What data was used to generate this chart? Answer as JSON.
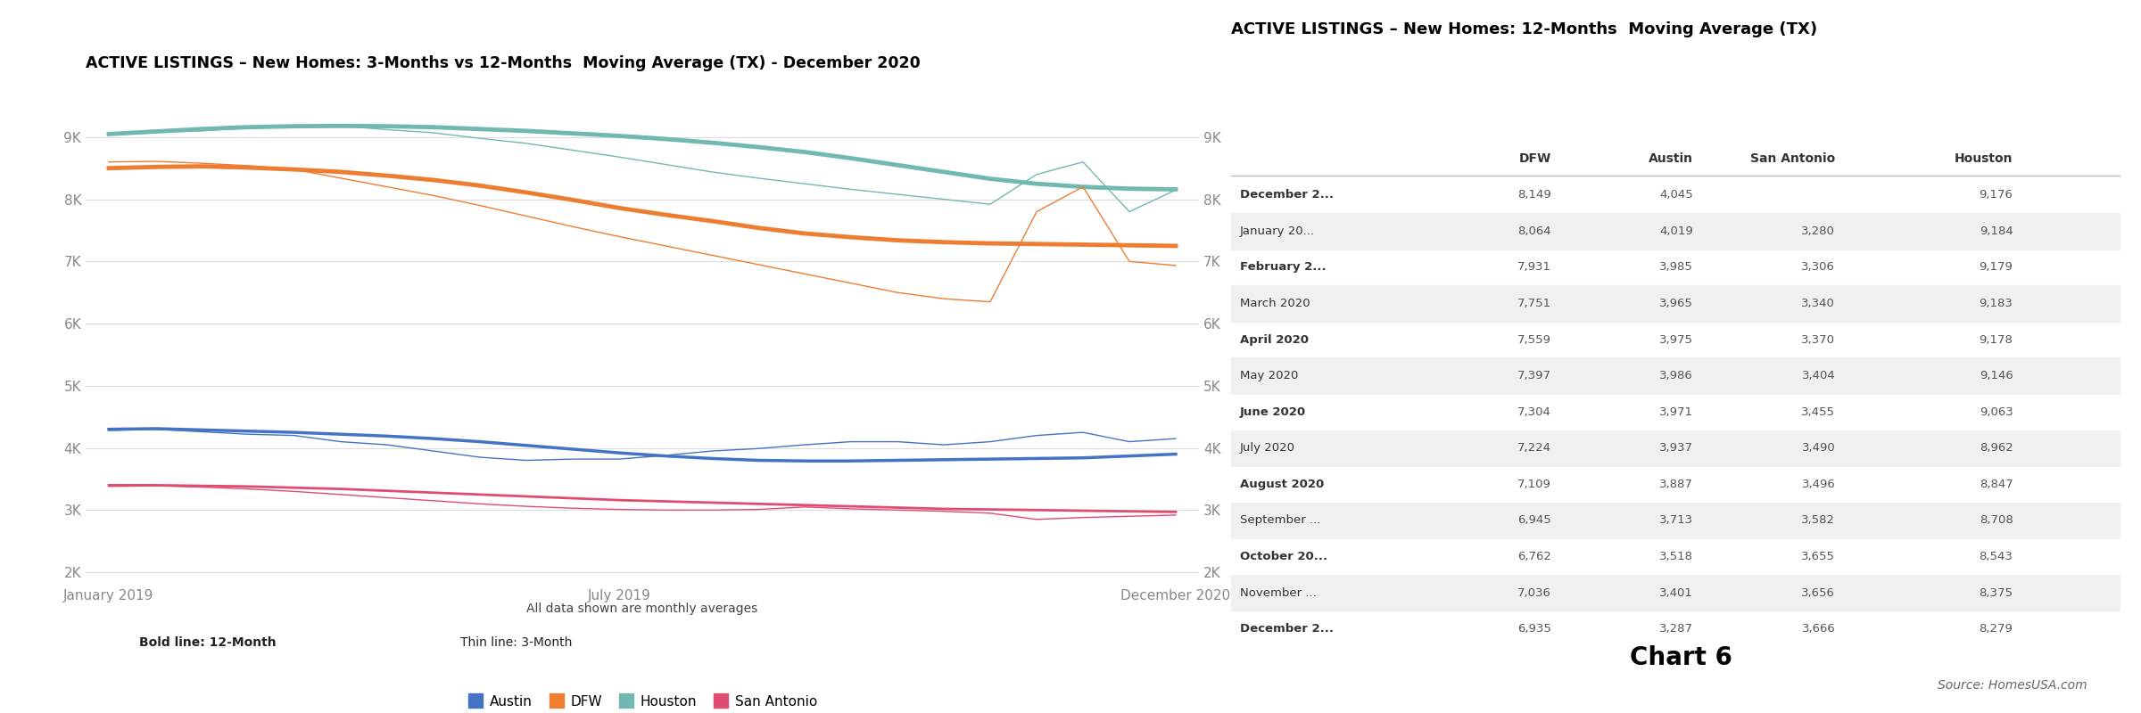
{
  "title_left": "ACTIVE LISTINGS – New Homes: 3-Months vs 12-Months  Moving Average (TX) - December 2020",
  "title_right_line1": "ACTIVE LISTINGS – New Homes: 12-Months  Moving Average (TX)",
  "chart6_label": "Chart 6",
  "source_label": "Source: HomesUSA.com",
  "footnote": "All data shown are monthly averages",
  "bold_note": "Bold line: 12-Month",
  "thin_note": "Thin line: 3-Month",
  "x_labels": [
    "January 2019",
    "July 2019",
    "December 2020"
  ],
  "y_ticks": [
    2000,
    3000,
    4000,
    5000,
    6000,
    7000,
    8000,
    9000
  ],
  "y_labels": [
    "2K",
    "3K",
    "4K",
    "5K",
    "6K",
    "7K",
    "8K",
    "9K"
  ],
  "ylim": [
    1800,
    9600
  ],
  "houston_color": "#70b8b0",
  "dfw_color": "#ed7d31",
  "austin_color": "#4472c4",
  "sanantonio_color": "#e04c71",
  "houston_12m": [
    9050,
    9090,
    9130,
    9160,
    9175,
    9180,
    9175,
    9160,
    9130,
    9100,
    9060,
    9020,
    8970,
    8910,
    8840,
    8760,
    8660,
    8550,
    8440,
    8330,
    8250,
    8200,
    8170,
    8160
  ],
  "houston_3m": [
    9030,
    9080,
    9100,
    9150,
    9160,
    9180,
    9120,
    9070,
    8980,
    8900,
    8790,
    8680,
    8560,
    8440,
    8340,
    8250,
    8160,
    8080,
    8000,
    7920,
    8400,
    8600,
    7800,
    8150
  ],
  "dfw_12m": [
    8500,
    8520,
    8530,
    8510,
    8480,
    8440,
    8380,
    8310,
    8220,
    8110,
    7990,
    7860,
    7750,
    7650,
    7540,
    7450,
    7390,
    7340,
    7310,
    7290,
    7280,
    7270,
    7260,
    7250
  ],
  "dfw_3m": [
    8600,
    8610,
    8580,
    8540,
    8480,
    8340,
    8200,
    8060,
    7900,
    7730,
    7560,
    7400,
    7250,
    7100,
    6950,
    6800,
    6650,
    6500,
    6400,
    6350,
    7800,
    8200,
    7000,
    6935
  ],
  "austin_12m": [
    4300,
    4310,
    4290,
    4270,
    4250,
    4220,
    4190,
    4150,
    4100,
    4040,
    3980,
    3920,
    3870,
    3830,
    3800,
    3790,
    3790,
    3800,
    3810,
    3820,
    3830,
    3840,
    3870,
    3900
  ],
  "austin_3m": [
    4280,
    4300,
    4260,
    4220,
    4200,
    4100,
    4050,
    3950,
    3850,
    3800,
    3820,
    3820,
    3880,
    3950,
    3990,
    4050,
    4100,
    4100,
    4050,
    4100,
    4200,
    4250,
    4100,
    4150
  ],
  "sanantonio_12m": [
    3400,
    3400,
    3390,
    3380,
    3360,
    3340,
    3310,
    3280,
    3250,
    3220,
    3190,
    3160,
    3140,
    3120,
    3100,
    3080,
    3060,
    3040,
    3020,
    3010,
    3000,
    2990,
    2980,
    2970
  ],
  "sanantonio_3m": [
    3380,
    3390,
    3370,
    3340,
    3300,
    3250,
    3200,
    3150,
    3100,
    3060,
    3030,
    3010,
    3000,
    3000,
    3010,
    3050,
    3020,
    3000,
    2980,
    2950,
    2850,
    2880,
    2900,
    2920
  ],
  "table_months": [
    "December 2...",
    "January 20...",
    "February 2...",
    "March 2020",
    "April 2020",
    "May 2020",
    "June 2020",
    "July 2020",
    "August 2020",
    "September ...",
    "October 20...",
    "November ...",
    "December 2..."
  ],
  "table_dfw": [
    8149,
    8064,
    7931,
    7751,
    7559,
    7397,
    7304,
    7224,
    7109,
    6945,
    6762,
    7036,
    6935
  ],
  "table_austin": [
    4045,
    4019,
    3985,
    3965,
    3975,
    3986,
    3971,
    3937,
    3887,
    3713,
    3518,
    3401,
    3287
  ],
  "table_sanantonio": [
    null,
    3280,
    3306,
    3340,
    3370,
    3404,
    3455,
    3490,
    3496,
    3582,
    3655,
    3656,
    3666
  ],
  "table_houston": [
    9176,
    9184,
    9179,
    9183,
    9178,
    9146,
    9063,
    8962,
    8847,
    8708,
    8543,
    8375,
    8279
  ],
  "col_headers": [
    "",
    "DFW",
    "Austin",
    "San Antonio",
    "Houston"
  ]
}
